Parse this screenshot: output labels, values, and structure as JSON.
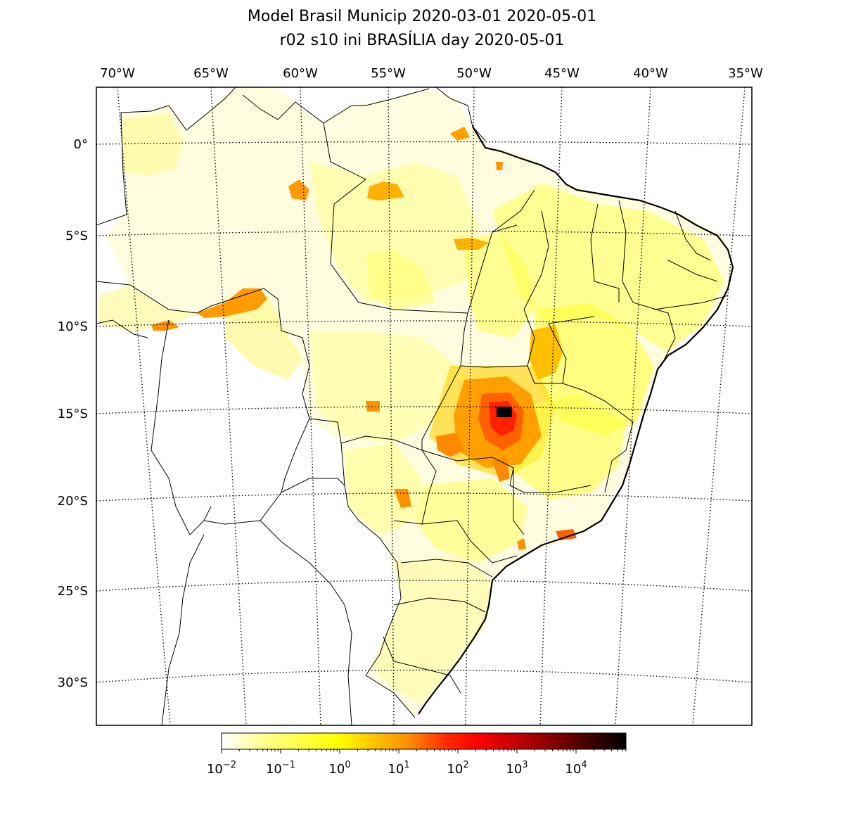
{
  "title": {
    "line1": "Model Brasil Municip 2020-03-01 2020-05-01",
    "line2": "r02 s10 ini BRASÍLIA day 2020-05-01"
  },
  "map": {
    "lon_labels": [
      "70°W",
      "65°W",
      "60°W",
      "55°W",
      "50°W",
      "45°W",
      "40°W",
      "35°W"
    ],
    "lat_labels": [
      "0°",
      "5°S",
      "10°S",
      "15°S",
      "20°S",
      "25°S",
      "30°S"
    ],
    "hotspot_label": "BRASÍLIA",
    "grid_style": "dotted"
  },
  "colorbar": {
    "colormap": "hot_r",
    "scale": "log",
    "colors": [
      "#ffffff",
      "#ffff66",
      "#ffff00",
      "#ffbf00",
      "#ff8000",
      "#ff2000",
      "#d00000",
      "#800000",
      "#000000"
    ],
    "ticks": [
      {
        "base": "10",
        "exp": "−2"
      },
      {
        "base": "10",
        "exp": "−1"
      },
      {
        "base": "10",
        "exp": "0"
      },
      {
        "base": "10",
        "exp": "1"
      },
      {
        "base": "10",
        "exp": "2"
      },
      {
        "base": "10",
        "exp": "3"
      },
      {
        "base": "10",
        "exp": "4"
      }
    ]
  }
}
